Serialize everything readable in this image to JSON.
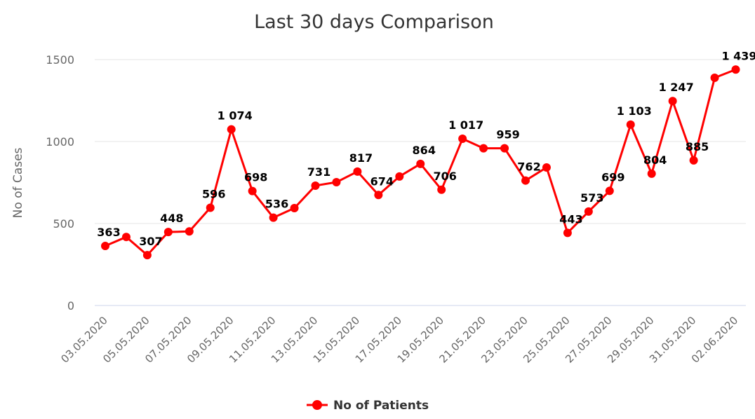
{
  "chart_data": {
    "type": "line",
    "title": "Last 30 days Comparison",
    "xlabel": "",
    "ylabel": "No of Cases",
    "ylim": [
      0,
      1500
    ],
    "yticks": [
      0,
      500,
      1000,
      1500
    ],
    "grid": true,
    "legend_position": "bottom-center",
    "categories": [
      "03.05.2020",
      "04.05.2020",
      "05.05.2020",
      "06.05.2020",
      "07.05.2020",
      "08.05.2020",
      "09.05.2020",
      "10.05.2020",
      "11.05.2020",
      "12.05.2020",
      "13.05.2020",
      "14.05.2020",
      "15.05.2020",
      "16.05.2020",
      "17.05.2020",
      "18.05.2020",
      "19.05.2020",
      "20.05.2020",
      "21.05.2020",
      "22.05.2020",
      "23.05.2020",
      "24.05.2020",
      "25.05.2020",
      "26.05.2020",
      "27.05.2020",
      "28.05.2020",
      "29.05.2020",
      "30.05.2020",
      "31.05.2020",
      "01.06.2020",
      "02.06.2020"
    ],
    "series": [
      {
        "name": "No of Patients",
        "color": "#ff0000",
        "values": [
          363,
          418,
          307,
          448,
          452,
          596,
          1074,
          698,
          536,
          594,
          731,
          752,
          817,
          674,
          787,
          864,
          706,
          1017,
          959,
          959,
          762,
          842,
          443,
          573,
          699,
          1103,
          804,
          1247,
          885,
          1389,
          1439
        ],
        "labels": [
          "363",
          "",
          "307",
          "448",
          "",
          "596",
          "1 074",
          "698",
          "536",
          "",
          "731",
          "",
          "817",
          "674",
          "",
          "864",
          "706",
          "1 017",
          "",
          "959",
          "762",
          "",
          "443",
          "573",
          "699",
          "1 103",
          "804",
          "1 247",
          "885",
          "",
          "1 439"
        ]
      }
    ]
  }
}
